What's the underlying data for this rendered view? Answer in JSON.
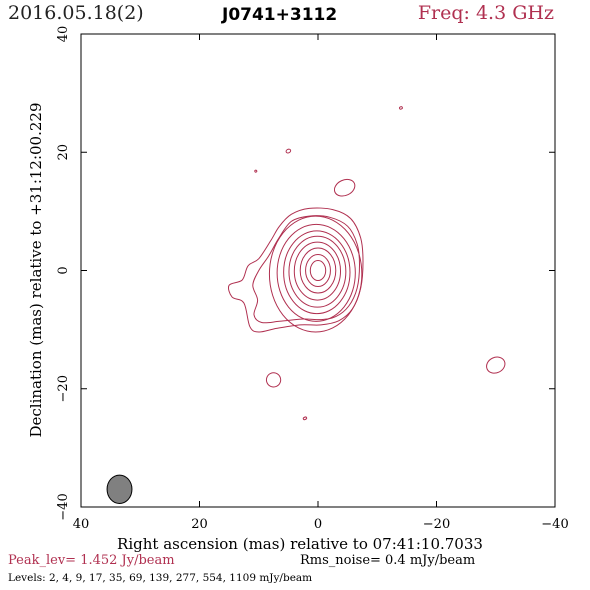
{
  "header": {
    "date": "2016.05.18(2)",
    "source": "J0741+3112",
    "frequency": "Freq: 4.3 GHz",
    "frequency_color": "#b03050"
  },
  "chart_data": {
    "type": "contour",
    "xlabel": "Right ascension (mas) relative to 07:41:10.7033",
    "ylabel": "Declination (mas) relative to +31:12:00.229",
    "xlim": [
      40,
      -40
    ],
    "ylim": [
      -40,
      40
    ],
    "x_ticks": [
      40,
      20,
      0,
      -20,
      -40
    ],
    "y_ticks": [
      -40,
      -20,
      0,
      20,
      40
    ],
    "x_tick_labels": [
      "40",
      "20",
      "0",
      "−20",
      "−40"
    ],
    "y_tick_labels": [
      "−40",
      "−20",
      "0",
      "20",
      "40"
    ],
    "contour_color": "#b03050",
    "beam": {
      "x": 33.5,
      "y": -37,
      "major": 4.8,
      "minor": 4.2,
      "color": "#808080"
    },
    "core": {
      "x": 0,
      "y": 0
    },
    "levels_mjy": [
      2,
      4,
      9,
      17,
      35,
      69,
      139,
      277,
      554,
      1109
    ],
    "core_contours": [
      {
        "rx": 7.8,
        "ry": 9.8,
        "cx": 0.4,
        "cy": -0.6
      },
      {
        "rx": 6.6,
        "ry": 8.2,
        "cx": 0.3,
        "cy": -0.4
      },
      {
        "rx": 5.6,
        "ry": 7.0,
        "cx": 0.2,
        "cy": -0.3
      },
      {
        "rx": 4.8,
        "ry": 6.0,
        "cx": 0.1,
        "cy": -0.2
      },
      {
        "rx": 3.9,
        "ry": 4.9,
        "cx": 0.1,
        "cy": -0.1
      },
      {
        "rx": 3.0,
        "ry": 3.8,
        "cx": 0.0,
        "cy": 0.0
      },
      {
        "rx": 2.1,
        "ry": 2.7,
        "cx": 0.0,
        "cy": 0.0
      },
      {
        "rx": 1.3,
        "ry": 1.7,
        "cx": 0.0,
        "cy": 0.0
      }
    ],
    "outer_contours": [
      [
        [
          4.5,
          9.5
        ],
        [
          1.5,
          10.5
        ],
        [
          -2.5,
          10.3
        ],
        [
          -5.5,
          8.8
        ],
        [
          -7.2,
          5.5
        ],
        [
          -7.6,
          1.5
        ],
        [
          -7.2,
          -3
        ],
        [
          -5.8,
          -6.5
        ],
        [
          -3.5,
          -8.5
        ],
        [
          -0.5,
          -9.2
        ],
        [
          3,
          -9.2
        ],
        [
          7,
          -9.8
        ],
        [
          10,
          -10.4
        ],
        [
          11.5,
          -9.5
        ],
        [
          12.5,
          -5.5
        ],
        [
          14.5,
          -4.5
        ],
        [
          15,
          -2.5
        ],
        [
          12.8,
          -1.6
        ],
        [
          11.8,
          0.8
        ],
        [
          10,
          2
        ],
        [
          8,
          5
        ],
        [
          6.5,
          7.5
        ]
      ],
      [
        [
          4.5,
          8.3
        ],
        [
          1.5,
          9.2
        ],
        [
          -2,
          9
        ],
        [
          -5,
          7.5
        ],
        [
          -6.6,
          4.5
        ],
        [
          -7,
          1
        ],
        [
          -6.6,
          -3
        ],
        [
          -5.2,
          -6
        ],
        [
          -3,
          -7.8
        ],
        [
          -0.5,
          -8.3
        ],
        [
          2.5,
          -8.2
        ],
        [
          6.5,
          -8.6
        ],
        [
          9.5,
          -8.8
        ],
        [
          10.8,
          -7.5
        ],
        [
          10.2,
          -5
        ],
        [
          11,
          -2.5
        ],
        [
          10,
          0
        ],
        [
          8.3,
          2.5
        ],
        [
          6.6,
          5.5
        ]
      ]
    ],
    "islands": [
      {
        "cx": 5,
        "cy": 20.2,
        "rx": 0.4,
        "ry": 0.3
      },
      {
        "cx": -4.5,
        "cy": 14,
        "rx": 1.8,
        "ry": 1.3
      },
      {
        "cx": -14,
        "cy": 27.5,
        "rx": 0.25,
        "ry": 0.2
      },
      {
        "cx": 10.5,
        "cy": 16.8,
        "rx": 0.1,
        "ry": 0.1
      },
      {
        "cx": 7.5,
        "cy": -18.5,
        "rx": 1.2,
        "ry": 1.2
      },
      {
        "cx": 2.2,
        "cy": -25,
        "rx": 0.3,
        "ry": 0.2
      },
      {
        "cx": -30,
        "cy": -16,
        "rx": 1.6,
        "ry": 1.3
      }
    ]
  },
  "footer": {
    "peak": "Peak_lev=  1.452 Jy/beam",
    "rms": "Rms_noise=  0.4 mJy/beam",
    "levels": "Levels:   2,    4,    9,   17,   35,   69,  139,  277,  554,  1109 mJy/beam"
  }
}
